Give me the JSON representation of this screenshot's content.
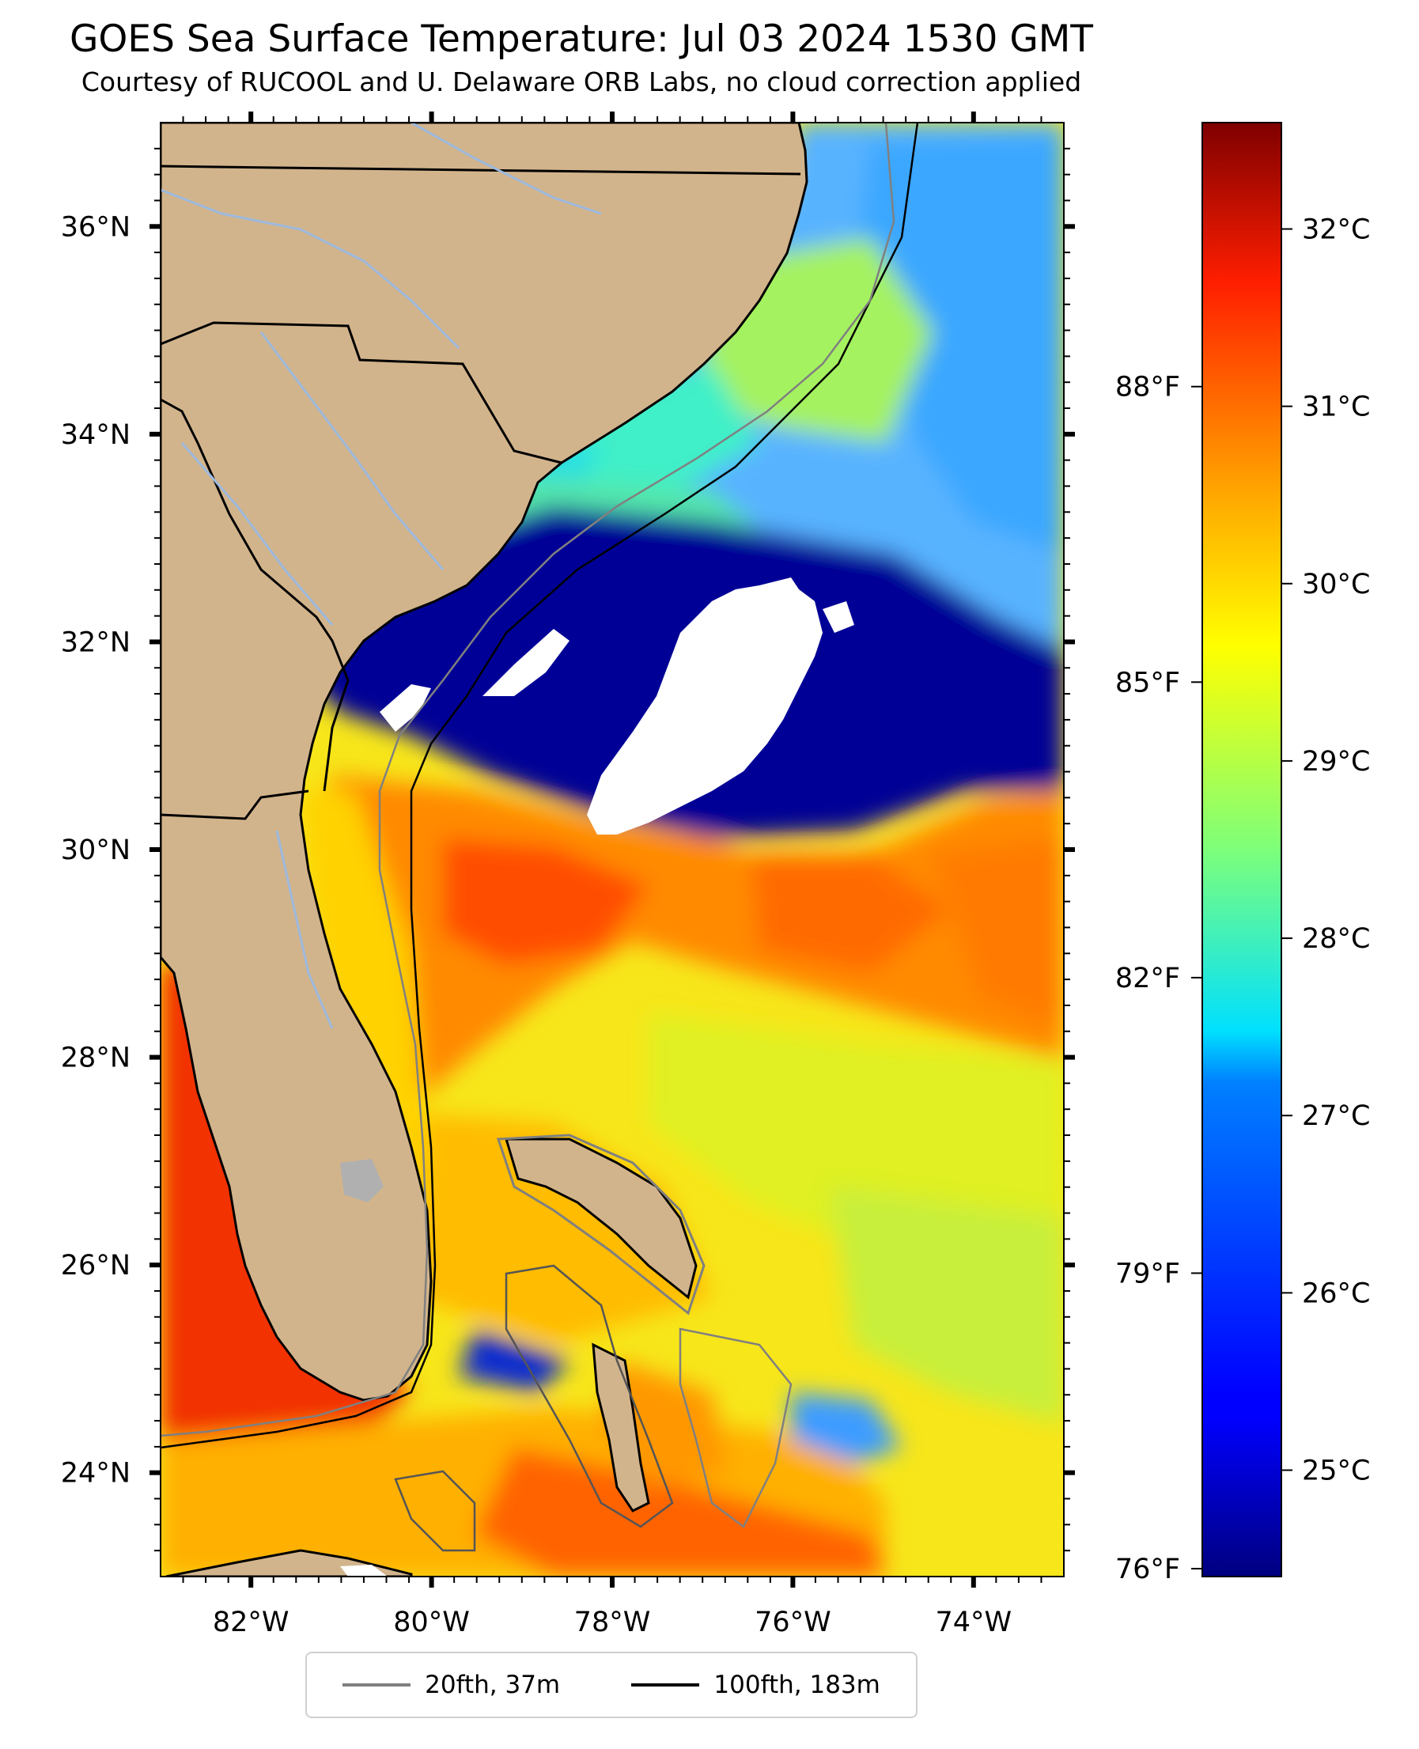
{
  "title": "GOES Sea Surface Temperature: Jul 03 2024 1530 GMT",
  "subtitle": "Courtesy of RUCOOL and U. Delaware ORB Labs, no cloud correction applied",
  "map": {
    "extent": {
      "lon_min": -83.0,
      "lon_max": -73.0,
      "lat_min": 23.0,
      "lat_max": 37.0
    },
    "lat_ticks": [
      {
        "value": 36,
        "label": "36°N"
      },
      {
        "value": 34,
        "label": "34°N"
      },
      {
        "value": 32,
        "label": "32°N"
      },
      {
        "value": 30,
        "label": "30°N"
      },
      {
        "value": 28,
        "label": "28°N"
      },
      {
        "value": 26,
        "label": "26°N"
      },
      {
        "value": 24,
        "label": "24°N"
      }
    ],
    "lon_ticks": [
      {
        "value": -82,
        "label": "82°W"
      },
      {
        "value": -80,
        "label": "80°W"
      },
      {
        "value": -78,
        "label": "78°W"
      },
      {
        "value": -76,
        "label": "76°W"
      },
      {
        "value": -74,
        "label": "74°W"
      }
    ],
    "colors": {
      "land": "#d2b48c",
      "border": "#000000",
      "river": "#9db9dd",
      "cloud": "#ffffff"
    }
  },
  "colorbar": {
    "cmap": "jet",
    "range_c": [
      24.4,
      32.6
    ],
    "celsius_ticks": [
      {
        "value": 32,
        "label": "32°C"
      },
      {
        "value": 31,
        "label": "31°C"
      },
      {
        "value": 30,
        "label": "30°C"
      },
      {
        "value": 29,
        "label": "29°C"
      },
      {
        "value": 28,
        "label": "28°C"
      },
      {
        "value": 27,
        "label": "27°C"
      },
      {
        "value": 26,
        "label": "26°C"
      },
      {
        "value": 25,
        "label": "25°C"
      }
    ],
    "fahrenheit_ticks": [
      {
        "value": 88,
        "label": "88°F"
      },
      {
        "value": 85,
        "label": "85°F"
      },
      {
        "value": 82,
        "label": "82°F"
      },
      {
        "value": 79,
        "label": "79°F"
      },
      {
        "value": 76,
        "label": "76°F"
      }
    ]
  },
  "legend": [
    {
      "label": "20fth, 37m",
      "color": "#808080"
    },
    {
      "label": "100fth, 183m",
      "color": "#000000"
    }
  ]
}
